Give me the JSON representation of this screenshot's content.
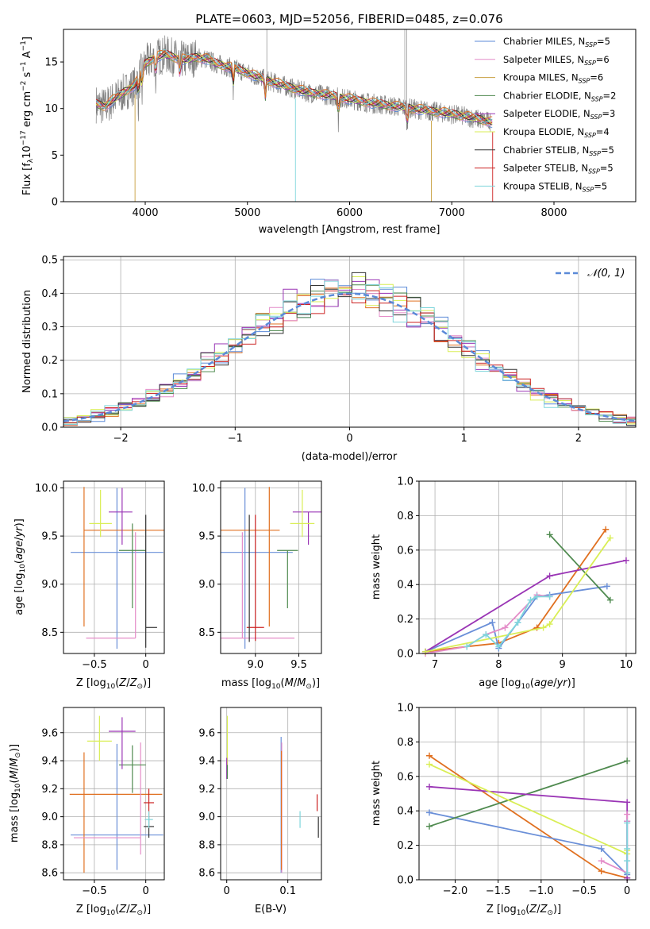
{
  "colors": {
    "chabrier_miles": "#5b8ad8",
    "salpeter_miles": "#e48cc8",
    "kroupa_miles": "#c8a040",
    "chabrier_elodie": "#4f8a4f",
    "salpeter_elodie": "#9a35b5",
    "kroupa_elodie": "#d9ee55",
    "chabrier_stelib": "#333333",
    "salpeter_stelib": "#cc2222",
    "kroupa_stelib": "#7fd6dc",
    "orange": "#e07020",
    "blue": "#6a8fd8",
    "green": "#5a8a60",
    "purple": "#9b35b5",
    "yellow": "#d5ee50",
    "cyan": "#7ec8d8",
    "gray": "#808080"
  },
  "chart_data": [
    {
      "type": "line",
      "id": "spectrum",
      "title": "PLATE=0603, MJD=52056, FIBERID=0485, z=0.076",
      "xlabel": "wavelength [Angstrom, rest frame]",
      "ylabel": "Flux [fλ10⁻¹⁷ erg cm⁻² s⁻¹ A⁻¹]",
      "xlim": [
        3200,
        8800
      ],
      "ylim": [
        0,
        18.5
      ],
      "xticks": [
        4000,
        5000,
        6000,
        7000,
        8000
      ],
      "yticks": [
        0,
        5,
        10,
        15
      ],
      "legend_position": "top-right",
      "series": [
        {
          "name": "Chabrier MILES, N",
          "sub": "SSP",
          "suffix": "=5",
          "color": "#5b8ad8"
        },
        {
          "name": "Salpeter MILES, N",
          "sub": "SSP",
          "suffix": "=6",
          "color": "#e48cc8"
        },
        {
          "name": "Kroupa MILES, N",
          "sub": "SSP",
          "suffix": "=6",
          "color": "#c8a040"
        },
        {
          "name": "Chabrier ELODIE, N",
          "sub": "SSP",
          "suffix": "=2",
          "color": "#4f8a4f"
        },
        {
          "name": "Salpeter ELODIE, N",
          "sub": "SSP",
          "suffix": "=3",
          "color": "#9a35b5"
        },
        {
          "name": "Kroupa ELODIE, N",
          "sub": "SSP",
          "suffix": "=4",
          "color": "#d9ee55"
        },
        {
          "name": "Chabrier STELIB, N",
          "sub": "SSP",
          "suffix": "=5",
          "color": "#333333"
        },
        {
          "name": "Salpeter STELIB, N",
          "sub": "SSP",
          "suffix": "=5",
          "color": "#cc2222"
        },
        {
          "name": "Kroupa STELIB, N",
          "sub": "SSP",
          "suffix": "=5",
          "color": "#7fd6dc"
        }
      ],
      "continuum": {
        "x": [
          3520,
          3600,
          3700,
          3800,
          3900,
          4000,
          4100,
          4200,
          4300,
          4400,
          4500,
          4600,
          4700,
          4800,
          4900,
          5000,
          5200,
          5400,
          5600,
          5800,
          6000,
          6200,
          6400,
          6600,
          6800,
          7000,
          7200,
          7400,
          7600,
          7800,
          8000,
          8200,
          8400,
          8600,
          8800
        ],
        "y": [
          10.5,
          10.2,
          11.0,
          11.8,
          12.5,
          14.8,
          15.5,
          15.8,
          15.4,
          15.2,
          15.5,
          15.3,
          14.8,
          14.5,
          14.2,
          13.8,
          13.0,
          12.3,
          11.7,
          11.4,
          11.0,
          10.6,
          10.3,
          10.0,
          9.7,
          9.4,
          9.0,
          8.5,
          8.1,
          7.6,
          7.0,
          6.5,
          6.0,
          5.6,
          5.2
        ]
      }
    },
    {
      "type": "histogram",
      "id": "residuals",
      "xlabel": "(data-model)/error",
      "ylabel": "Normed distribution",
      "xlim": [
        -2.5,
        2.5
      ],
      "ylim": [
        0,
        0.51
      ],
      "xticks": [
        -2,
        -1,
        0,
        1,
        2
      ],
      "yticks": [
        0.0,
        0.1,
        0.2,
        0.3,
        0.4,
        0.5
      ],
      "reference_curve": {
        "label": "𝒩(0, 1)",
        "mean": 0,
        "sigma": 1,
        "color": "#5b8ad8"
      },
      "series": [
        {
          "color": "#e07020",
          "shift": 0.0
        },
        {
          "color": "#5b8ad8",
          "shift": 0.02
        },
        {
          "color": "#e48cc8",
          "shift": -0.01
        },
        {
          "color": "#4f8a4f",
          "shift": 0.03
        },
        {
          "color": "#9a35b5",
          "shift": -0.03
        },
        {
          "color": "#d9ee55",
          "shift": 0.01
        },
        {
          "color": "#333333",
          "shift": 0.0
        },
        {
          "color": "#cc2222",
          "shift": 0.02
        },
        {
          "color": "#7fd6dc",
          "shift": -0.02
        }
      ]
    },
    {
      "type": "scatter",
      "id": "age_vs_Z",
      "xlabel": "Z [log₁₀(Z/Z⊙)]",
      "ylabel": "age  [log₁₀(age/yr)]",
      "xlim": [
        -0.8,
        0.18
      ],
      "ylim": [
        8.28,
        10.07
      ],
      "xticks": [
        -0.5,
        0.0
      ],
      "yticks": [
        8.5,
        9.0,
        9.5,
        10.0
      ],
      "points": [
        {
          "x": -0.28,
          "y": 9.33,
          "xerr": [
            0.45,
            0.45
          ],
          "yerr": [
            1.0,
            0.67
          ],
          "color": "#6a8fd8"
        },
        {
          "x": -0.17,
          "y": 9.56,
          "xerr": [
            0.43,
            0.43
          ],
          "yerr": [
            0.0,
            0.0
          ],
          "color": "#e07020"
        },
        {
          "x": -0.6,
          "y": 9.56,
          "xerr": [
            0.0,
            0.0
          ],
          "yerr": [
            1.0,
            0.45
          ],
          "color": "#e07020"
        },
        {
          "x": -0.1,
          "y": 8.44,
          "xerr": [
            0.48,
            0.0
          ],
          "yerr": [
            0.0,
            1.1
          ],
          "color": "#e48cc8"
        },
        {
          "x": -0.13,
          "y": 9.35,
          "xerr": [
            0.13,
            0.13
          ],
          "yerr": [
            0.6,
            0.28
          ],
          "color": "#4f8a4f"
        },
        {
          "x": -0.23,
          "y": 9.75,
          "xerr": [
            0.13,
            0.1
          ],
          "yerr": [
            0.34,
            0.25
          ],
          "color": "#9a35b5"
        },
        {
          "x": -0.44,
          "y": 9.63,
          "xerr": [
            0.11,
            0.11
          ],
          "yerr": [
            0.14,
            0.35
          ],
          "color": "#d9ee55"
        },
        {
          "x": 0.05,
          "y": 8.55,
          "xerr": [
            0.05,
            0.06
          ],
          "yerr": [
            0.0,
            0.0
          ],
          "color": "#333333"
        },
        {
          "x": 0.0,
          "y": 9.4,
          "xerr": [
            0.0,
            0.0
          ],
          "yerr": [
            1.06,
            0.32
          ],
          "color": "#333333"
        }
      ]
    },
    {
      "type": "scatter",
      "id": "age_vs_mass",
      "xlabel": "mass [log₁₀(M/M⊙)]",
      "ylabel": "",
      "xlim": [
        8.6,
        9.76
      ],
      "ylim": [
        8.28,
        10.07
      ],
      "xticks": [
        9.0,
        9.5
      ],
      "yticks": [
        8.5,
        9.0,
        9.5,
        10.0
      ],
      "points": [
        {
          "x": 8.88,
          "y": 9.33,
          "xerr": [
            0.3,
            0.55
          ],
          "yerr": [
            1.0,
            0.67
          ],
          "color": "#6a8fd8"
        },
        {
          "x": 8.88,
          "y": 9.56,
          "xerr": [
            0.3,
            0.4
          ],
          "yerr": [
            0.0,
            0.0
          ],
          "color": "#e07020"
        },
        {
          "x": 9.16,
          "y": 9.56,
          "xerr": [
            0.0,
            0.0
          ],
          "yerr": [
            1.0,
            0.45
          ],
          "color": "#e07020"
        },
        {
          "x": 8.85,
          "y": 8.44,
          "xerr": [
            0.25,
            0.6
          ],
          "yerr": [
            0.0,
            1.1
          ],
          "color": "#e48cc8"
        },
        {
          "x": 9.37,
          "y": 9.35,
          "xerr": [
            0.12,
            0.12
          ],
          "yerr": [
            0.6,
            0.0
          ],
          "color": "#4f8a4f"
        },
        {
          "x": 9.61,
          "y": 9.75,
          "xerr": [
            0.18,
            0.18
          ],
          "yerr": [
            0.34,
            0.0
          ],
          "color": "#9a35b5"
        },
        {
          "x": 9.54,
          "y": 9.63,
          "xerr": [
            0.14,
            0.14
          ],
          "yerr": [
            0.14,
            0.35
          ],
          "color": "#d9ee55"
        },
        {
          "x": 9.0,
          "y": 8.55,
          "xerr": [
            0.1,
            0.1
          ],
          "yerr": [
            0.14,
            1.17
          ],
          "color": "#cc2222"
        },
        {
          "x": 8.93,
          "y": 9.3,
          "xerr": [
            0.0,
            0.0
          ],
          "yerr": [
            0.9,
            0.42
          ],
          "color": "#333333"
        }
      ]
    },
    {
      "type": "line",
      "id": "weight_vs_age",
      "xlabel": "age  [log₁₀(age/yr)]",
      "ylabel": "mass weight",
      "xlim": [
        6.75,
        10.15
      ],
      "ylim": [
        0,
        1.0
      ],
      "xticks": [
        7,
        8,
        9,
        10
      ],
      "yticks": [
        0.0,
        0.2,
        0.4,
        0.6,
        0.8,
        1.0
      ],
      "series": [
        {
          "color": "#e07020",
          "x": [
            6.85,
            7.5,
            8.0,
            8.6,
            9.68
          ],
          "y": [
            0.01,
            0.04,
            0.06,
            0.15,
            0.72
          ]
        },
        {
          "color": "#6a8fd8",
          "x": [
            6.85,
            7.9,
            8.0,
            8.3,
            8.6,
            8.8,
            9.7
          ],
          "y": [
            0.01,
            0.18,
            0.03,
            0.18,
            0.33,
            0.34,
            0.39
          ]
        },
        {
          "color": "#e48cc8",
          "x": [
            6.85,
            7.5,
            7.8,
            8.1,
            8.6,
            8.8
          ],
          "y": [
            0.0,
            0.04,
            0.11,
            0.15,
            0.34,
            0.33
          ]
        },
        {
          "color": "#4f8a4f",
          "x": [
            8.8,
            9.75
          ],
          "y": [
            0.69,
            0.31
          ]
        },
        {
          "color": "#9a35b5",
          "x": [
            6.85,
            8.8,
            10.0
          ],
          "y": [
            0.01,
            0.45,
            0.54
          ]
        },
        {
          "color": "#d9ee55",
          "x": [
            6.85,
            8.7,
            8.8,
            9.75
          ],
          "y": [
            0.01,
            0.15,
            0.17,
            0.67
          ]
        },
        {
          "color": "#7fd6dc",
          "x": [
            7.5,
            7.8,
            8.0,
            8.3,
            8.5,
            8.6,
            8.8
          ],
          "y": [
            0.04,
            0.11,
            0.04,
            0.18,
            0.31,
            0.33,
            0.33
          ]
        }
      ]
    },
    {
      "type": "scatter",
      "id": "mass_vs_Z",
      "xlabel": "Z [log₁₀(Z/Z⊙)]",
      "ylabel": "mass [log₁₀(M/M⊙)]",
      "xlim": [
        -0.8,
        0.18
      ],
      "ylim": [
        8.55,
        9.78
      ],
      "xticks": [
        -0.5,
        0.0
      ],
      "yticks": [
        8.6,
        8.8,
        9.0,
        9.2,
        9.4,
        9.6
      ],
      "points": [
        {
          "x": -0.28,
          "y": 8.87,
          "xerr": [
            0.45,
            0.45
          ],
          "yerr": [
            0.25,
            0.65
          ],
          "color": "#6a8fd8"
        },
        {
          "x": -0.17,
          "y": 9.16,
          "xerr": [
            0.57,
            0.33
          ],
          "yerr": [
            0.0,
            0.0
          ],
          "color": "#e07020"
        },
        {
          "x": -0.6,
          "y": 9.16,
          "xerr": [
            0.0,
            0.0
          ],
          "yerr": [
            0.56,
            0.3
          ],
          "color": "#e07020"
        },
        {
          "x": -0.05,
          "y": 8.85,
          "xerr": [
            0.65,
            0.0
          ],
          "yerr": [
            0.12,
            0.68
          ],
          "color": "#e48cc8"
        },
        {
          "x": -0.13,
          "y": 9.37,
          "xerr": [
            0.13,
            0.13
          ],
          "yerr": [
            0.2,
            0.14
          ],
          "color": "#4f8a4f"
        },
        {
          "x": -0.23,
          "y": 9.61,
          "xerr": [
            0.13,
            0.13
          ],
          "yerr": [
            0.27,
            0.1
          ],
          "color": "#9a35b5"
        },
        {
          "x": -0.45,
          "y": 9.54,
          "xerr": [
            0.12,
            0.12
          ],
          "yerr": [
            0.14,
            0.18
          ],
          "color": "#d9ee55"
        },
        {
          "x": 0.03,
          "y": 9.1,
          "xerr": [
            0.05,
            0.05
          ],
          "yerr": [
            0.1,
            0.1
          ],
          "color": "#cc2222"
        },
        {
          "x": 0.03,
          "y": 8.93,
          "xerr": [
            0.05,
            0.05
          ],
          "yerr": [
            0.08,
            0.07
          ],
          "color": "#333333"
        },
        {
          "x": 0.03,
          "y": 8.98,
          "xerr": [
            0.04,
            0.04
          ],
          "yerr": [
            0.06,
            0.06
          ],
          "color": "#7fd6dc"
        }
      ]
    },
    {
      "type": "scatter",
      "id": "mass_vs_ebv",
      "xlabel": "E(B-V)",
      "ylabel": "",
      "xlim": [
        -0.01,
        0.155
      ],
      "ylim": [
        8.55,
        9.78
      ],
      "xticks": [
        0.0,
        0.1
      ],
      "yticks": [
        8.6,
        8.8,
        9.0,
        9.2,
        9.4,
        9.6
      ],
      "points": [
        {
          "x": 0.001,
          "y": 9.5,
          "yerr": [
            0.2,
            0.22
          ],
          "color": "#d9ee55"
        },
        {
          "x": 0.0,
          "y": 9.37,
          "yerr": [
            0.1,
            0.05
          ],
          "color": "#9a35b5"
        },
        {
          "x": 0.001,
          "y": 9.32,
          "yerr": [
            0.05,
            0.05
          ],
          "color": "#4f8a4f"
        },
        {
          "x": 0.089,
          "y": 9.1,
          "yerr": [
            0.5,
            0.47
          ],
          "color": "#6a8fd8"
        },
        {
          "x": 0.09,
          "y": 9.05,
          "yerr": [
            0.45,
            0.48
          ],
          "color": "#e48cc8"
        },
        {
          "x": 0.0895,
          "y": 9.0,
          "yerr": [
            0.38,
            0.47
          ],
          "color": "#e07020"
        },
        {
          "x": 0.12,
          "y": 8.98,
          "yerr": [
            0.06,
            0.06
          ],
          "color": "#7fd6dc"
        },
        {
          "x": 0.148,
          "y": 9.1,
          "yerr": [
            0.06,
            0.06
          ],
          "color": "#cc2222"
        },
        {
          "x": 0.15,
          "y": 8.93,
          "yerr": [
            0.08,
            0.07
          ],
          "color": "#333333"
        }
      ]
    },
    {
      "type": "line",
      "id": "weight_vs_Z",
      "xlabel": "Z [log₁₀(Z/Z⊙)]",
      "ylabel": "mass weight",
      "xlim": [
        -2.42,
        0.1
      ],
      "ylim": [
        0,
        1.0
      ],
      "xticks": [
        -2.0,
        -1.5,
        -1.0,
        -0.5,
        0.0
      ],
      "yticks": [
        0.0,
        0.2,
        0.4,
        0.6,
        0.8,
        1.0
      ],
      "series": [
        {
          "color": "#e07020",
          "x": [
            -2.3,
            -0.3,
            0.0
          ],
          "y": [
            0.72,
            0.05,
            0.01
          ]
        },
        {
          "color": "#6a8fd8",
          "x": [
            -2.3,
            -0.3,
            0.0,
            0.0
          ],
          "y": [
            0.39,
            0.18,
            0.03,
            0.34
          ]
        },
        {
          "color": "#4f8a4f",
          "x": [
            -2.3,
            0.0
          ],
          "y": [
            0.31,
            0.69
          ]
        },
        {
          "color": "#9a35b5",
          "x": [
            -2.3,
            0.0,
            0.0
          ],
          "y": [
            0.54,
            0.45,
            0.01
          ]
        },
        {
          "color": "#d9ee55",
          "x": [
            -2.3,
            0.0,
            0.0
          ],
          "y": [
            0.67,
            0.15,
            0.17
          ]
        },
        {
          "color": "#e48cc8",
          "x": [
            -0.3,
            0.0,
            0.0,
            0.0
          ],
          "y": [
            0.11,
            0.04,
            0.34,
            0.38
          ]
        },
        {
          "color": "#7fd6dc",
          "x": [
            0.0,
            0.0,
            0.0,
            0.0
          ],
          "y": [
            0.04,
            0.11,
            0.18,
            0.33
          ]
        }
      ]
    }
  ]
}
